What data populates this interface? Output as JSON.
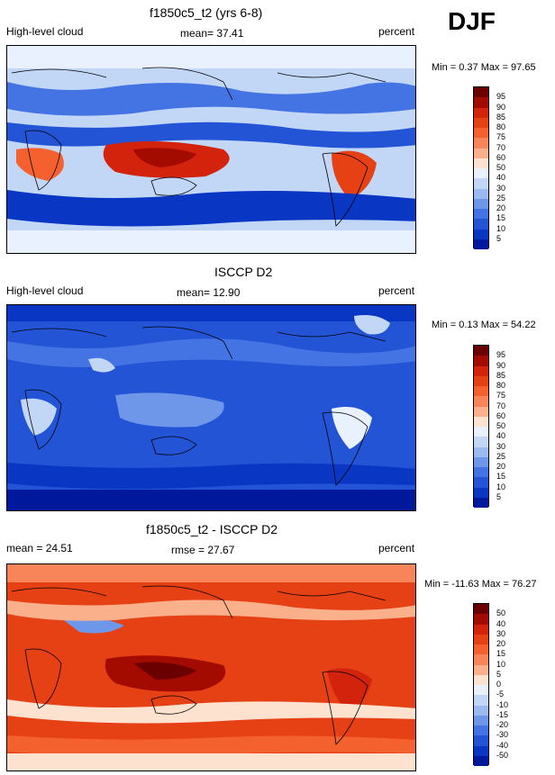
{
  "season": "DJF",
  "panels": [
    {
      "title": "f1850c5_t2 (yrs 6-8)",
      "left_label": "High-level cloud",
      "center_label": "mean=  37.41",
      "right_label": "percent",
      "minmax": "Min =  0.37 Max =  97.65",
      "colorbar_labels": [
        "95",
        "90",
        "85",
        "80",
        "75",
        "70",
        "60",
        "50",
        "40",
        "30",
        "25",
        "20",
        "15",
        "10",
        "5"
      ],
      "colors": [
        "#6a0000",
        "#a30a00",
        "#d3230c",
        "#e64015",
        "#f5602f",
        "#f8855a",
        "#fab08a",
        "#fde2d0",
        "#e8f1fd",
        "#c2d6f6",
        "#9bbaf0",
        "#6e97ea",
        "#4474e4",
        "#2354d6",
        "#0a36c4",
        "#00189c"
      ]
    },
    {
      "title": "ISCCP D2",
      "left_label": "High-level cloud",
      "center_label": "mean=  12.90",
      "right_label": "percent",
      "minmax": "Min =  0.13 Max =  54.22",
      "colorbar_labels": [
        "95",
        "90",
        "85",
        "80",
        "75",
        "70",
        "60",
        "50",
        "40",
        "30",
        "25",
        "20",
        "15",
        "10",
        "5"
      ],
      "colors": [
        "#6a0000",
        "#a30a00",
        "#d3230c",
        "#e64015",
        "#f5602f",
        "#f8855a",
        "#fab08a",
        "#fde2d0",
        "#e8f1fd",
        "#c2d6f6",
        "#9bbaf0",
        "#6e97ea",
        "#4474e4",
        "#2354d6",
        "#0a36c4",
        "#00189c"
      ]
    },
    {
      "title": "f1850c5_t2 - ISCCP D2",
      "left_label": "mean =  24.51",
      "center_label": "rmse =  27.67",
      "right_label": "percent",
      "minmax": "Min = -11.63 Max =  76.27",
      "colorbar_labels": [
        "50",
        "40",
        "30",
        "20",
        "15",
        "10",
        "5",
        "0",
        "-5",
        "-10",
        "-15",
        "-20",
        "-30",
        "-40",
        "-50"
      ],
      "colors": [
        "#6a0000",
        "#a30a00",
        "#d3230c",
        "#e64015",
        "#f5602f",
        "#f8855a",
        "#fab08a",
        "#fde2d0",
        "#e8f1fd",
        "#c2d6f6",
        "#9bbaf0",
        "#6e97ea",
        "#4474e4",
        "#2354d6",
        "#0a36c4",
        "#00189c"
      ]
    }
  ],
  "chart_data": [
    {
      "type": "heatmap",
      "title": "f1850c5_t2 (yrs 6-8)",
      "subtitle": "High-level cloud",
      "units": "percent",
      "mean": 37.41,
      "min": 0.37,
      "max": 97.65,
      "levels": [
        5,
        10,
        15,
        20,
        25,
        30,
        40,
        50,
        60,
        70,
        75,
        80,
        85,
        90,
        95
      ]
    },
    {
      "type": "heatmap",
      "title": "ISCCP D2",
      "subtitle": "High-level cloud",
      "units": "percent",
      "mean": 12.9,
      "min": 0.13,
      "max": 54.22,
      "levels": [
        5,
        10,
        15,
        20,
        25,
        30,
        40,
        50,
        60,
        70,
        75,
        80,
        85,
        90,
        95
      ]
    },
    {
      "type": "heatmap",
      "title": "f1850c5_t2 - ISCCP D2",
      "units": "percent",
      "mean": 24.51,
      "rmse": 27.67,
      "min": -11.63,
      "max": 76.27,
      "levels": [
        -50,
        -40,
        -30,
        -20,
        -15,
        -10,
        -5,
        0,
        5,
        10,
        15,
        20,
        30,
        40,
        50
      ]
    }
  ]
}
